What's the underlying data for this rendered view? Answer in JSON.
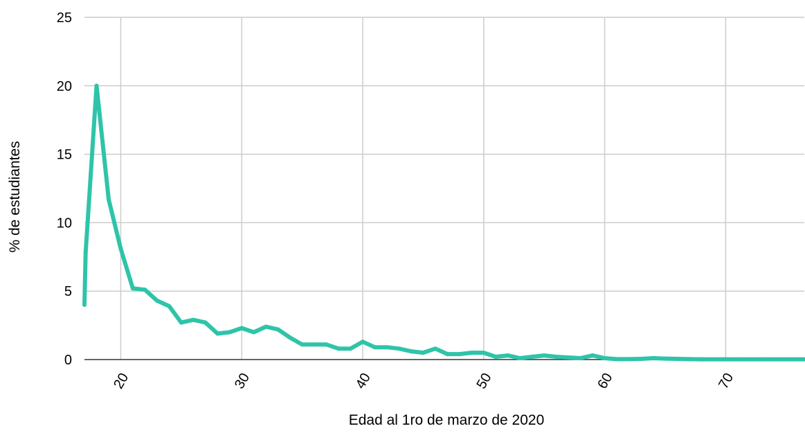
{
  "chart_data": {
    "type": "line",
    "title": "",
    "xlabel": "Edad al 1ro de marzo de 2020",
    "ylabel": "% de estudiantes",
    "xlim": [
      17,
      76.5
    ],
    "ylim": [
      0,
      25
    ],
    "xticks": [
      20,
      30,
      40,
      50,
      60,
      70
    ],
    "yticks": [
      0,
      5,
      10,
      15,
      20,
      25
    ],
    "xtick_labels": [
      "20",
      "30",
      "40",
      "50",
      "60",
      "70"
    ],
    "ytick_labels": [
      "0",
      "5",
      "10",
      "15",
      "20",
      "25"
    ],
    "grid": true,
    "legend": "none",
    "colors": {
      "line": "#2ec4a9",
      "grid": "#cccccc",
      "baseline": "#333333"
    },
    "series": [
      {
        "x": [
          17,
          17.1,
          18,
          19,
          20,
          21,
          22,
          23,
          24,
          25,
          26,
          27,
          28,
          29,
          30,
          31,
          32,
          33,
          34,
          35,
          36,
          37,
          38,
          39,
          40,
          41,
          42,
          43,
          44,
          45,
          46,
          47,
          48,
          49,
          50,
          51,
          52,
          53,
          54,
          55,
          56,
          57,
          58,
          59,
          60,
          61,
          62,
          63,
          64,
          65,
          66,
          67,
          68,
          69,
          70,
          71,
          72,
          73,
          74,
          75,
          76.5
        ],
        "y": [
          4.0,
          7.8,
          20.0,
          11.7,
          8.1,
          5.2,
          5.1,
          4.3,
          3.9,
          2.7,
          2.9,
          2.7,
          1.9,
          2.0,
          2.3,
          2.0,
          2.4,
          2.2,
          1.6,
          1.1,
          1.1,
          1.1,
          0.8,
          0.8,
          1.3,
          0.9,
          0.9,
          0.8,
          0.6,
          0.5,
          0.8,
          0.4,
          0.4,
          0.5,
          0.5,
          0.2,
          0.3,
          0.1,
          0.2,
          0.3,
          0.2,
          0.15,
          0.1,
          0.3,
          0.1,
          0.03,
          0.03,
          0.05,
          0.1,
          0.07,
          0.05,
          0.03,
          0.02,
          0.02,
          0.02,
          0.02,
          0.02,
          0.02,
          0.02,
          0.02,
          0.02
        ]
      }
    ]
  }
}
